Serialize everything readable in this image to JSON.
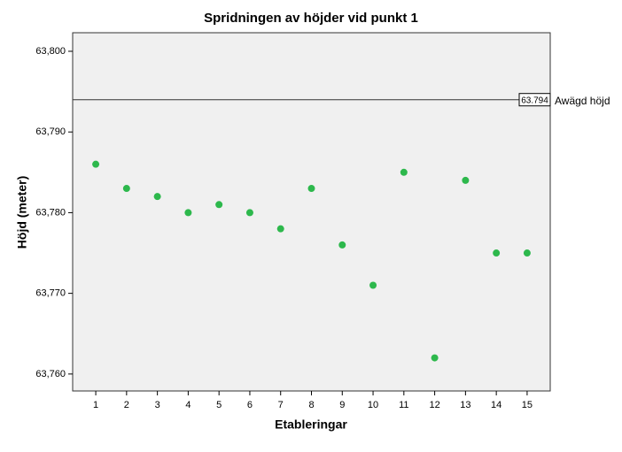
{
  "chart_data": {
    "type": "scatter",
    "title": "Spridningen av höjder vid punkt 1",
    "xlabel": "Etableringar",
    "ylabel": "Höjd (meter)",
    "x": [
      1,
      2,
      3,
      4,
      5,
      6,
      7,
      8,
      9,
      10,
      11,
      12,
      13,
      14,
      15
    ],
    "series": [
      {
        "name": null,
        "color": "#2db84c",
        "values": [
          63.786,
          63.783,
          63.782,
          63.78,
          63.781,
          63.78,
          63.778,
          63.783,
          63.776,
          63.771,
          63.785,
          63.762,
          63.784,
          63.775,
          63.775
        ]
      }
    ],
    "xlim": [
      0.25,
      15.75
    ],
    "xticks": [
      1,
      2,
      3,
      4,
      5,
      6,
      7,
      8,
      9,
      10,
      11,
      12,
      13,
      14,
      15
    ],
    "ylim": [
      63.7579,
      63.8023
    ],
    "yticks": [
      {
        "value": 63.76,
        "label": "63,760"
      },
      {
        "value": 63.77,
        "label": "63,770"
      },
      {
        "value": 63.78,
        "label": "63,780"
      },
      {
        "value": 63.79,
        "label": "63,790"
      },
      {
        "value": 63.8,
        "label": "63,800"
      }
    ],
    "reference_line": {
      "value": 63.794,
      "label": "Awägd höjd"
    },
    "grid": false
  }
}
